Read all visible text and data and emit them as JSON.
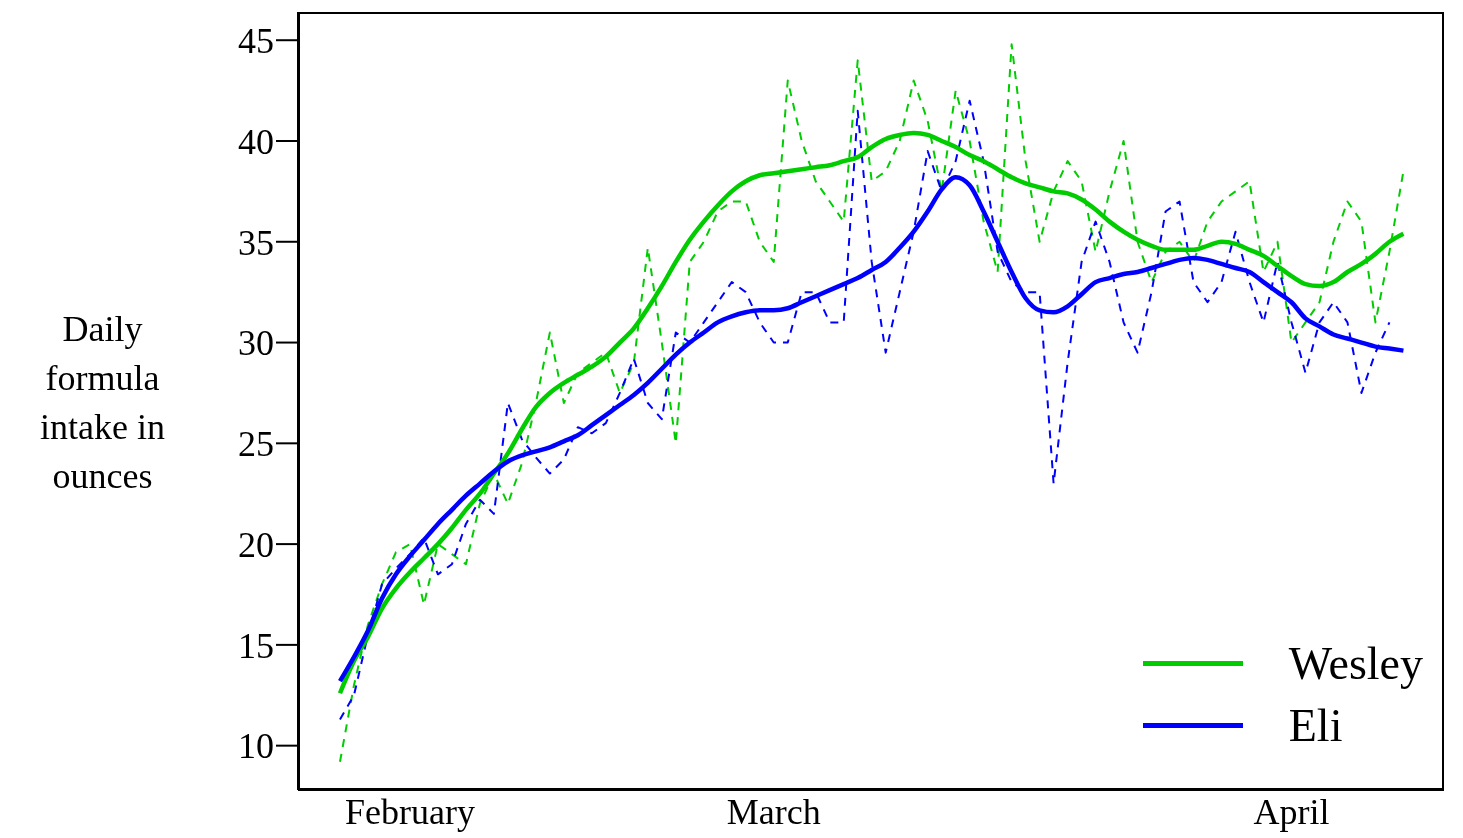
{
  "chart_data": {
    "type": "line",
    "ylabel": "Daily formula intake in ounces",
    "categories": [
      null,
      null,
      null,
      null,
      null,
      "February",
      null,
      null,
      null,
      null,
      null,
      null,
      null,
      null,
      null,
      null,
      null,
      null,
      null,
      null,
      null,
      null,
      null,
      null,
      null,
      null,
      null,
      null,
      null,
      null,
      null,
      "March",
      null,
      null,
      null,
      null,
      null,
      null,
      null,
      null,
      null,
      null,
      null,
      null,
      null,
      null,
      null,
      null,
      null,
      null,
      null,
      null,
      null,
      null,
      null,
      null,
      null,
      null,
      null,
      null,
      null,
      null,
      null,
      null,
      null,
      null,
      null,
      null,
      "April",
      null,
      null,
      null,
      null,
      null,
      null,
      null,
      null
    ],
    "ylim": [
      7.8,
      46.4
    ],
    "yticks": [
      10,
      15,
      20,
      25,
      30,
      35,
      40,
      45
    ],
    "grid": false,
    "legend": "bottom right",
    "marker": "none",
    "series": [
      {
        "color": "#00cc00",
        "line_style": "dashed",
        "values": [
          9.2,
          13,
          16,
          18,
          19.6,
          20,
          17,
          20,
          19.5,
          19,
          22,
          23.5,
          22,
          24,
          27,
          30.5,
          27,
          28.5,
          29,
          29.5,
          27.5,
          29,
          34.7,
          30,
          25,
          34,
          35,
          36.5,
          37,
          37,
          35,
          34,
          43,
          40,
          38,
          37,
          36,
          44,
          38,
          38.5,
          40,
          43,
          41,
          37.5,
          42.5,
          40,
          36,
          33.5,
          44.8,
          39,
          35,
          37.5,
          39,
          38,
          34.5,
          37.5,
          40,
          35,
          33,
          34.5,
          35,
          34,
          36,
          37,
          37.5,
          38,
          33.5,
          35,
          30,
          31,
          32,
          35,
          37,
          36,
          31,
          34.5,
          38.5
        ]
      },
      {
        "color": "#0000ff",
        "line_style": "dashed",
        "values": [
          11.3,
          12.5,
          15.5,
          18,
          18.8,
          19.5,
          20.3,
          18.5,
          19,
          21,
          22.2,
          21.5,
          27,
          25.2,
          24.3,
          23.5,
          24.2,
          25.8,
          25.5,
          26,
          27.5,
          29.2,
          27,
          26.2,
          30.5,
          30,
          31,
          32,
          33,
          32.5,
          31,
          30,
          30,
          32.5,
          32.5,
          31,
          31,
          41.5,
          34,
          29.5,
          32.5,
          35.5,
          39.5,
          37.5,
          39,
          42,
          39,
          34.5,
          33,
          32.5,
          32.5,
          23,
          29,
          34,
          36,
          34,
          31,
          29.5,
          32.5,
          36.5,
          37,
          33,
          32,
          33,
          35.5,
          33,
          31,
          34,
          31,
          28.5,
          31,
          32,
          31,
          27.5,
          29.5,
          31,
          null
        ]
      },
      {
        "name": "Wesley",
        "color": "#00cc00",
        "line_style": "solid",
        "values": [
          12.6,
          14.2,
          15.4,
          16.8,
          17.8,
          18.6,
          19.3,
          20,
          20.8,
          21.7,
          22.5,
          23.5,
          24.5,
          25.7,
          26.8,
          27.5,
          28,
          28.4,
          28.8,
          29.3,
          30,
          30.7,
          31.7,
          32.8,
          34,
          35.1,
          36,
          36.8,
          37.5,
          38,
          38.3,
          38.4,
          38.5,
          38.6,
          38.7,
          38.8,
          39,
          39.2,
          39.7,
          40.1,
          40.3,
          40.4,
          40.3,
          40,
          39.7,
          39.3,
          39,
          38.6,
          38.2,
          37.9,
          37.7,
          37.5,
          37.4,
          37.1,
          36.6,
          36,
          35.5,
          35.1,
          34.8,
          34.6,
          34.6,
          34.6,
          34.8,
          35,
          34.9,
          34.6,
          34.3,
          33.8,
          33.3,
          32.9,
          32.8,
          33,
          33.5,
          33.9,
          34.4,
          35,
          35.4
        ]
      },
      {
        "name": "Eli",
        "color": "#0000ff",
        "line_style": "solid",
        "values": [
          13.2,
          14.4,
          15.7,
          17.3,
          18.5,
          19.4,
          20.2,
          21,
          21.7,
          22.4,
          23,
          23.6,
          24.1,
          24.4,
          24.6,
          24.8,
          25.1,
          25.4,
          25.9,
          26.4,
          26.9,
          27.4,
          28,
          28.7,
          29.4,
          30,
          30.5,
          31,
          31.3,
          31.5,
          31.6,
          31.6,
          31.7,
          32,
          32.3,
          32.6,
          32.9,
          33.2,
          33.6,
          34,
          34.7,
          35.5,
          36.5,
          37.6,
          38.2,
          37.8,
          36.5,
          35,
          33.5,
          32.2,
          31.6,
          31.5,
          31.8,
          32.4,
          33,
          33.2,
          33.4,
          33.5,
          33.7,
          33.9,
          34.1,
          34.2,
          34.1,
          33.9,
          33.7,
          33.5,
          33,
          32.5,
          32,
          31.2,
          30.8,
          30.4,
          30.2,
          30,
          29.8,
          29.7,
          29.6
        ]
      }
    ]
  }
}
